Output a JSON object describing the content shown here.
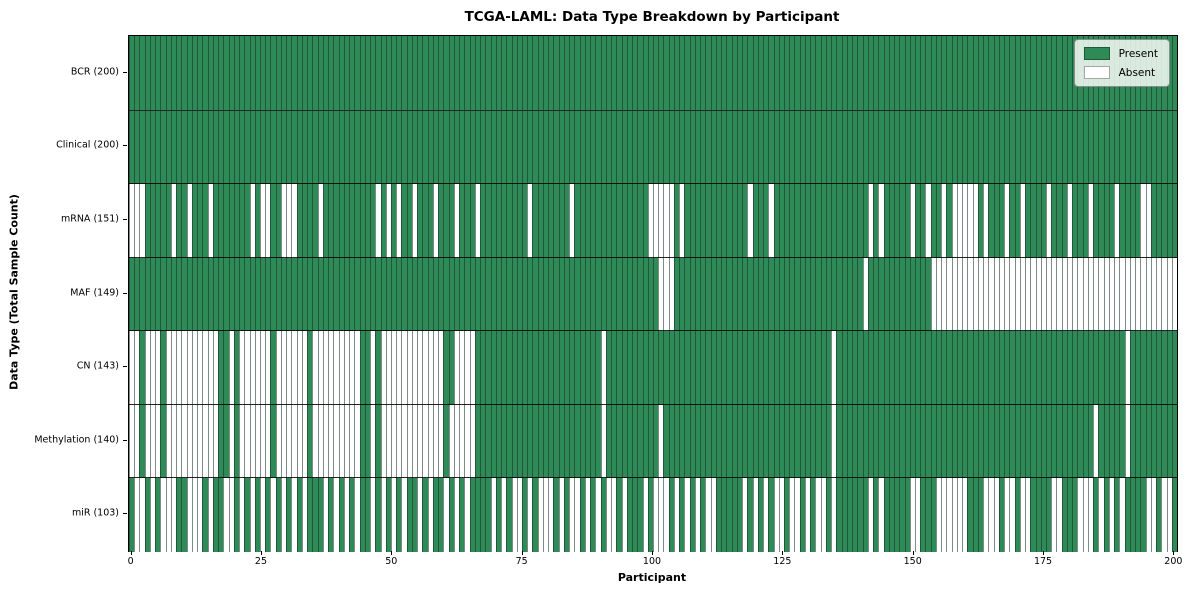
{
  "title": "TCGA-LAML: Data Type Breakdown by Participant",
  "legend": {
    "present_label": "Present",
    "absent_label": "Absent"
  },
  "colors": {
    "present": "#2e8b57",
    "absent": "#ffffff",
    "cell_edge": "rgba(22,44,33,0.55)",
    "spine": "#000000"
  },
  "axes": {
    "x_label": "Participant",
    "y_label": "Data Type (Total Sample Count)",
    "x_ticks": [
      0,
      25,
      50,
      75,
      100,
      125,
      150,
      175,
      200
    ],
    "n_participants": 200
  },
  "chart_data": {
    "type": "heatmap",
    "title": "TCGA-LAML: Data Type Breakdown by Participant",
    "xlabel": "Participant",
    "ylabel": "Data Type (Total Sample Count)",
    "x_range": [
      0,
      200
    ],
    "legend_position": "upper right",
    "states": [
      "Present",
      "Absent"
    ],
    "rows": [
      {
        "label": "BCR (200)",
        "name": "BCR",
        "present_count": 200,
        "absent": []
      },
      {
        "label": "Clinical (200)",
        "name": "Clinical",
        "present_count": 200,
        "absent": []
      },
      {
        "label": "mRNA (151)",
        "name": "mRNA",
        "present_count": 151,
        "absent": [
          0,
          1,
          2,
          8,
          11,
          15,
          23,
          25,
          26,
          29,
          30,
          31,
          36,
          47,
          49,
          51,
          54,
          58,
          62,
          66,
          76,
          84,
          99,
          100,
          101,
          102,
          103,
          105,
          118,
          122,
          141,
          143,
          149,
          152,
          155,
          157,
          158,
          159,
          160,
          161,
          163,
          167,
          170,
          175,
          179,
          183,
          188,
          193,
          194
        ]
      },
      {
        "label": "MAF (149)",
        "name": "MAF",
        "present_count": 149,
        "absent": [
          101,
          102,
          103,
          140,
          153,
          154,
          155,
          156,
          157,
          158,
          159,
          160,
          161,
          162,
          163,
          164,
          165,
          166,
          167,
          168,
          169,
          170,
          171,
          172,
          173,
          174,
          175,
          176,
          177,
          178,
          179,
          180,
          181,
          182,
          183,
          184,
          185,
          186,
          187,
          188,
          189,
          190,
          191,
          192,
          193,
          194,
          195,
          196,
          197,
          198,
          199
        ]
      },
      {
        "label": "CN (143)",
        "name": "CN",
        "present_count": 143,
        "absent": [
          0,
          1,
          3,
          4,
          5,
          7,
          8,
          9,
          10,
          11,
          12,
          13,
          14,
          15,
          16,
          19,
          21,
          22,
          23,
          24,
          25,
          26,
          28,
          29,
          30,
          31,
          32,
          33,
          35,
          36,
          37,
          38,
          39,
          40,
          41,
          42,
          43,
          46,
          48,
          49,
          50,
          51,
          52,
          53,
          54,
          55,
          56,
          57,
          58,
          59,
          62,
          63,
          64,
          65,
          90,
          134,
          190
        ]
      },
      {
        "label": "Methylation (140)",
        "name": "Methylation",
        "present_count": 140,
        "absent": [
          0,
          1,
          3,
          4,
          5,
          7,
          8,
          9,
          10,
          11,
          12,
          13,
          14,
          15,
          16,
          19,
          21,
          22,
          23,
          24,
          25,
          26,
          28,
          29,
          30,
          31,
          32,
          33,
          35,
          36,
          37,
          38,
          39,
          40,
          41,
          42,
          43,
          46,
          48,
          49,
          50,
          51,
          52,
          53,
          54,
          55,
          56,
          57,
          58,
          59,
          61,
          62,
          63,
          64,
          65,
          90,
          101,
          134,
          184,
          190
        ]
      },
      {
        "label": "miR (103)",
        "name": "miR",
        "present_count": 103,
        "absent": [
          1,
          2,
          4,
          6,
          7,
          8,
          11,
          12,
          13,
          15,
          18,
          19,
          21,
          23,
          25,
          27,
          29,
          31,
          33,
          37,
          39,
          41,
          43,
          46,
          48,
          50,
          52,
          55,
          57,
          60,
          62,
          64,
          69,
          71,
          73,
          74,
          76,
          78,
          79,
          80,
          82,
          84,
          85,
          87,
          89,
          91,
          92,
          94,
          98,
          100,
          101,
          102,
          104,
          106,
          108,
          110,
          111,
          117,
          119,
          121,
          123,
          124,
          126,
          127,
          129,
          131,
          132,
          134,
          141,
          143,
          149,
          150,
          154,
          155,
          156,
          157,
          158,
          159,
          163,
          164,
          165,
          167,
          168,
          170,
          171,
          176,
          177,
          181,
          182,
          183,
          185,
          187,
          189,
          194,
          195,
          197,
          198
        ]
      }
    ]
  }
}
